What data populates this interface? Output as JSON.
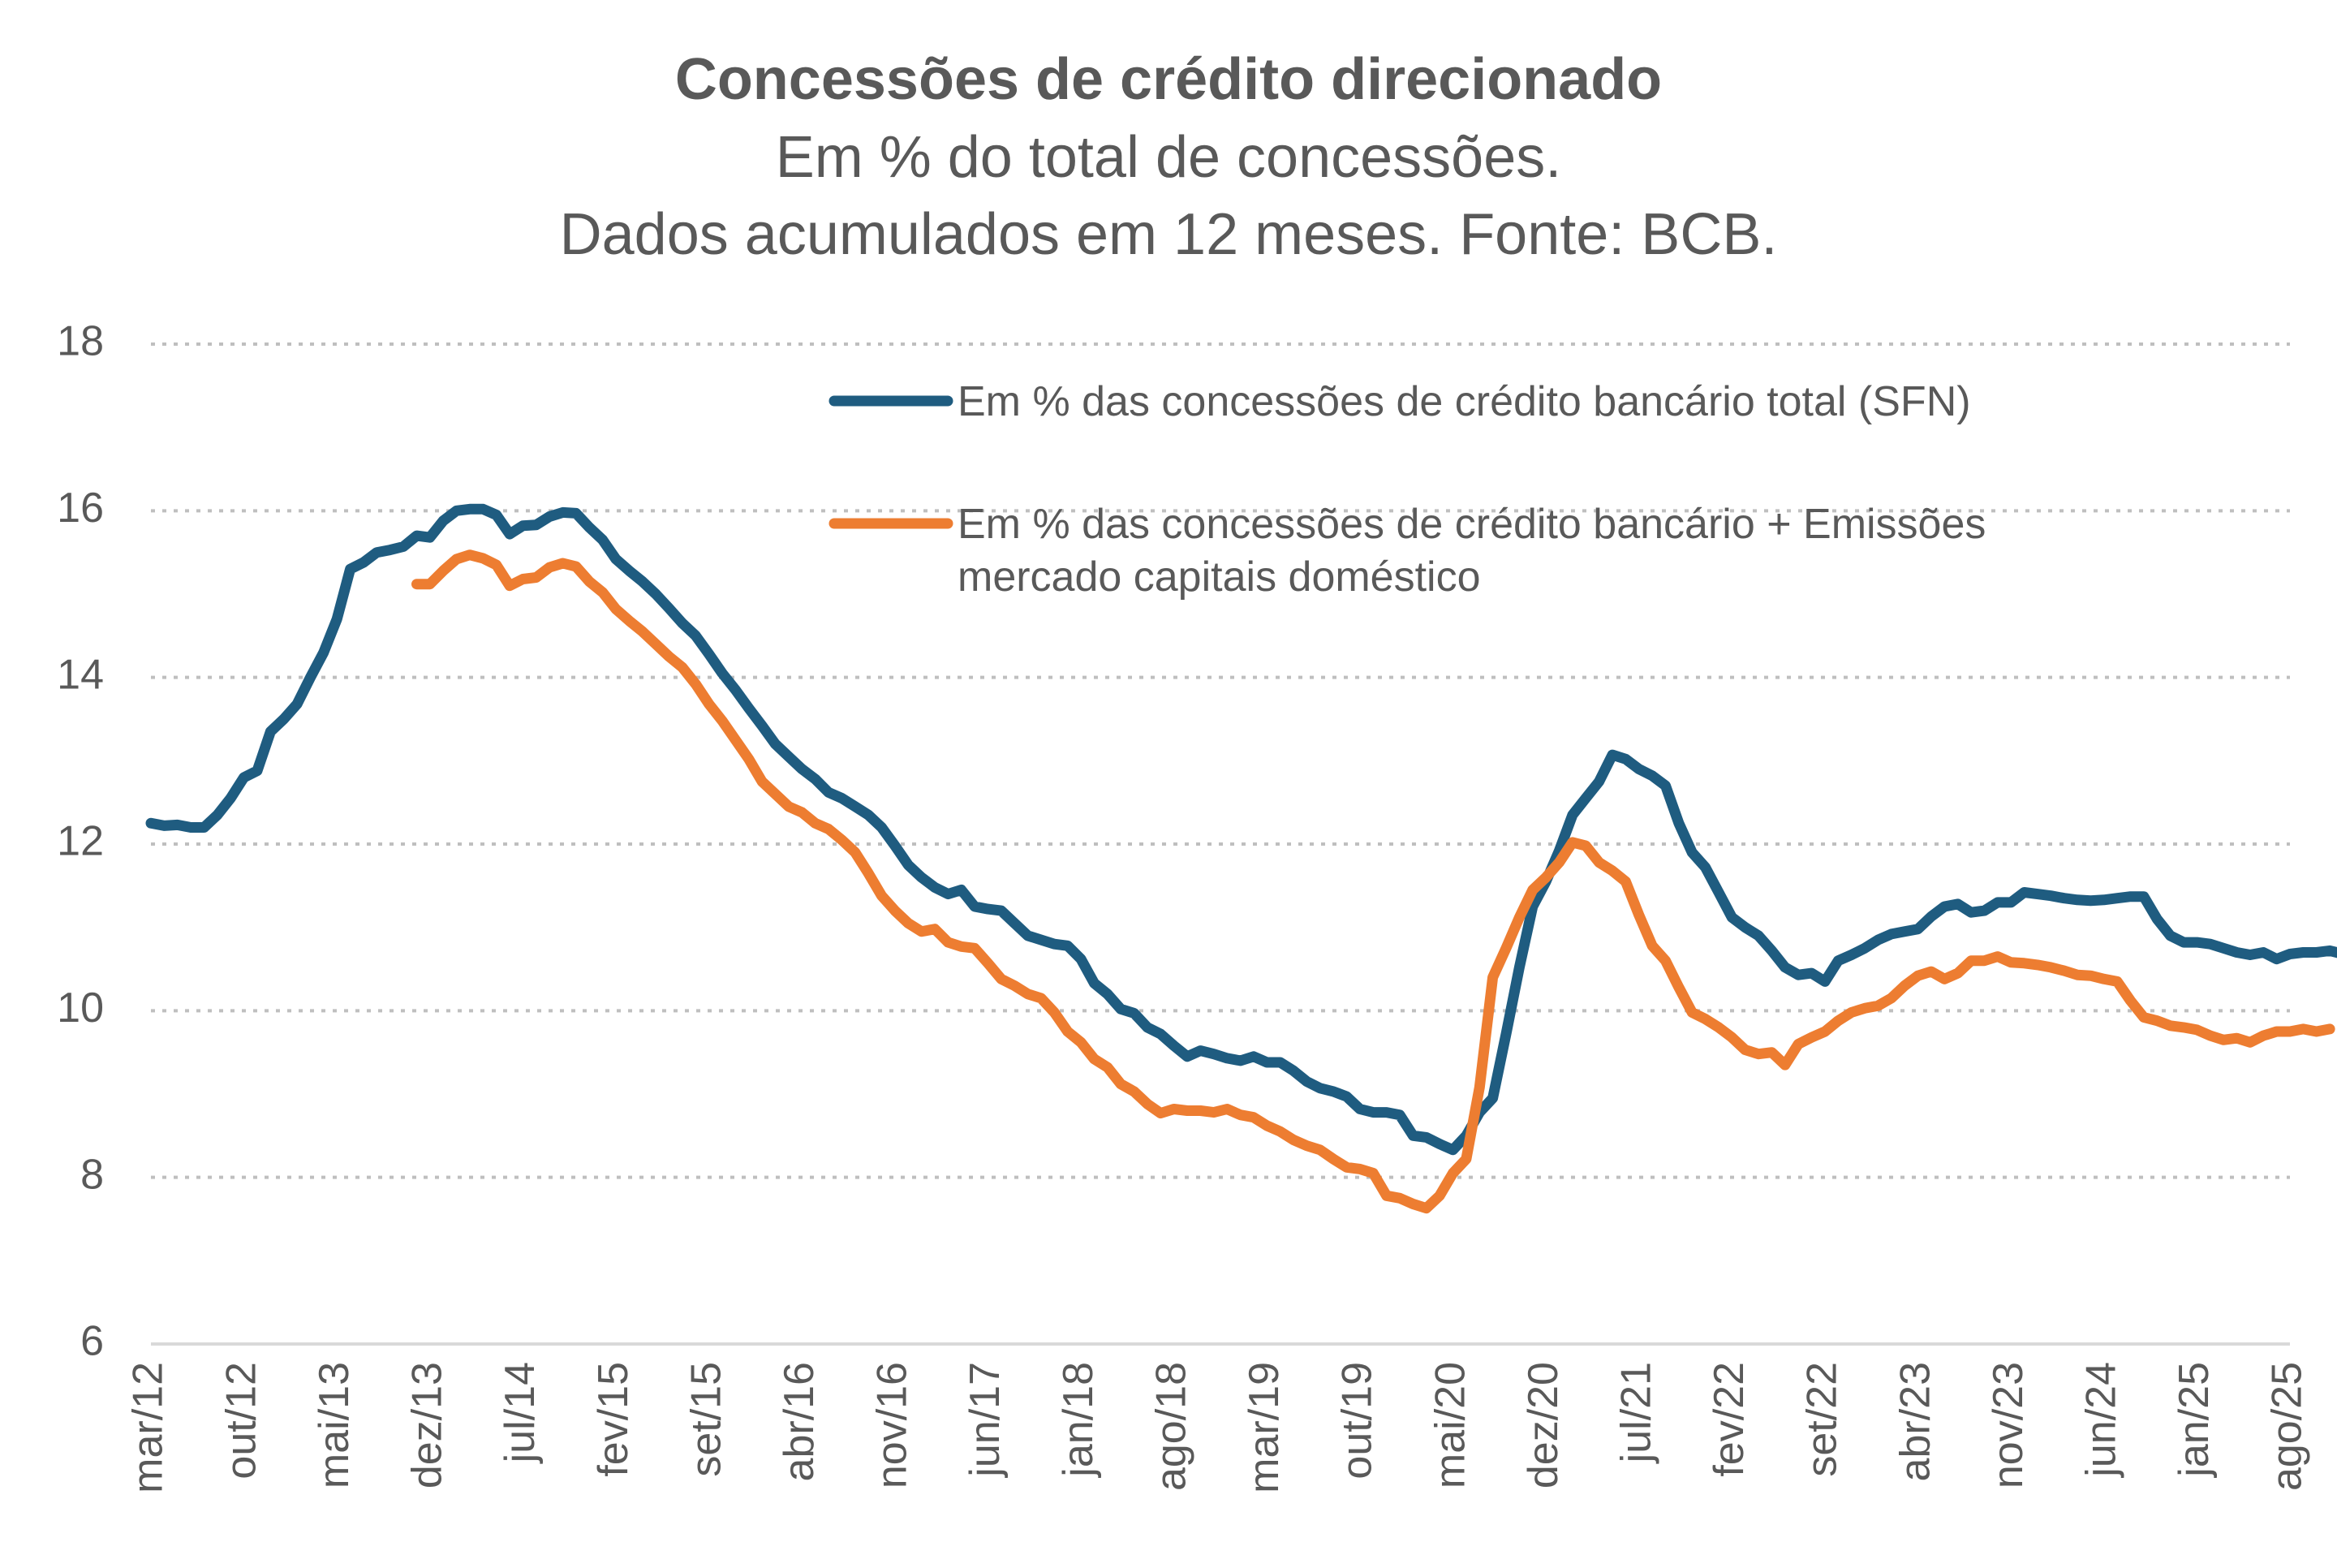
{
  "chart_data": {
    "type": "line",
    "title": "Concessões de crédito direcionado",
    "subtitle_lines": [
      "Em % do total de concessões.",
      "Dados acumulados em 12 meses. Fonte: BCB."
    ],
    "xlabel": "",
    "ylabel": "",
    "ylim": [
      6,
      18
    ],
    "yticks": [
      "6",
      "8",
      "10",
      "12",
      "14",
      "16",
      "18"
    ],
    "grid": "horizontal-dotted",
    "legend_placement": "top-right",
    "x_start": "mar/12",
    "x_end": "ago/25",
    "x_tick_labels": [
      "mar/12",
      "out/12",
      "mai/13",
      "dez/13",
      "jul/14",
      "fev/15",
      "set/15",
      "abr/16",
      "nov/16",
      "jun/17",
      "jan/18",
      "ago/18",
      "mar/19",
      "out/19",
      "mai/20",
      "dez/20",
      "jul/21",
      "fev/22",
      "set/22",
      "abr/23",
      "nov/23",
      "jun/24",
      "jan/25",
      "ago/25"
    ],
    "series": [
      {
        "name": "Em % das concessões de crédito bancário total (SFN)",
        "color": "#1F5C80",
        "start_month_index": 0,
        "values": [
          12.25,
          12.22,
          12.23,
          12.2,
          12.2,
          12.35,
          12.55,
          12.8,
          12.88,
          13.35,
          13.5,
          13.68,
          14.0,
          14.3,
          14.7,
          15.3,
          15.38,
          15.5,
          15.53,
          15.57,
          15.7,
          15.68,
          15.88,
          16.0,
          16.02,
          16.02,
          15.95,
          15.72,
          15.82,
          15.83,
          15.93,
          15.98,
          15.97,
          15.8,
          15.65,
          15.42,
          15.28,
          15.15,
          15.0,
          14.83,
          14.65,
          14.5,
          14.28,
          14.05,
          13.85,
          13.63,
          13.42,
          13.2,
          13.05,
          12.9,
          12.78,
          12.62,
          12.55,
          12.45,
          12.35,
          12.2,
          11.98,
          11.75,
          11.6,
          11.48,
          11.4,
          11.45,
          11.25,
          11.22,
          11.2,
          11.05,
          10.9,
          10.85,
          10.8,
          10.78,
          10.62,
          10.33,
          10.2,
          10.02,
          9.97,
          9.8,
          9.72,
          9.58,
          9.45,
          9.52,
          9.48,
          9.43,
          9.4,
          9.45,
          9.38,
          9.38,
          9.28,
          9.15,
          9.07,
          9.03,
          8.97,
          8.82,
          8.78,
          8.78,
          8.75,
          8.5,
          8.48,
          8.4,
          8.33,
          8.5,
          8.78,
          8.95,
          9.72,
          10.52,
          11.25,
          11.55,
          11.92,
          12.35,
          12.55,
          12.75,
          13.07,
          13.02,
          12.9,
          12.82,
          12.7,
          12.25,
          11.9,
          11.72,
          11.42,
          11.12,
          11.0,
          10.9,
          10.72,
          10.52,
          10.43,
          10.45,
          10.35,
          10.6,
          10.67,
          10.75,
          10.85,
          10.92,
          10.95,
          10.98,
          11.13,
          11.25,
          11.28,
          11.18,
          11.2,
          11.3,
          11.3,
          11.42,
          11.4,
          11.38,
          11.35,
          11.33,
          11.32,
          11.33,
          11.35,
          11.37,
          11.37,
          11.1,
          10.9,
          10.82,
          10.82,
          10.8,
          10.75,
          10.7,
          10.67,
          10.7,
          10.62,
          10.68,
          10.7,
          10.7,
          10.72,
          10.68,
          10.75
        ]
      },
      {
        "name": "Em % das concessões de crédito bancário + Emissões mercado capitais doméstico",
        "color": "#ED7D31",
        "start_month_index": 20,
        "values": [
          15.12,
          15.12,
          15.28,
          15.42,
          15.47,
          15.43,
          15.35,
          15.1,
          15.18,
          15.2,
          15.32,
          15.37,
          15.33,
          15.15,
          15.02,
          14.82,
          14.68,
          14.55,
          14.4,
          14.25,
          14.12,
          13.92,
          13.68,
          13.48,
          13.25,
          13.02,
          12.75,
          12.6,
          12.45,
          12.38,
          12.25,
          12.18,
          12.05,
          11.9,
          11.65,
          11.38,
          11.2,
          11.05,
          10.95,
          10.98,
          10.82,
          10.77,
          10.75,
          10.57,
          10.38,
          10.3,
          10.2,
          10.15,
          9.98,
          9.75,
          9.62,
          9.42,
          9.32,
          9.12,
          9.03,
          8.88,
          8.77,
          8.82,
          8.8,
          8.8,
          8.78,
          8.82,
          8.75,
          8.72,
          8.62,
          8.55,
          8.45,
          8.38,
          8.33,
          8.22,
          8.12,
          8.1,
          8.05,
          7.78,
          7.75,
          7.68,
          7.63,
          7.78,
          8.05,
          8.22,
          9.08,
          10.4,
          10.75,
          11.12,
          11.45,
          11.6,
          11.78,
          12.02,
          11.98,
          11.78,
          11.68,
          11.55,
          11.15,
          10.78,
          10.6,
          10.28,
          9.98,
          9.9,
          9.8,
          9.68,
          9.53,
          9.48,
          9.5,
          9.35,
          9.6,
          9.68,
          9.75,
          9.88,
          9.98,
          10.03,
          10.06,
          10.15,
          10.3,
          10.42,
          10.47,
          10.38,
          10.45,
          10.6,
          10.6,
          10.65,
          10.58,
          10.57,
          10.55,
          10.52,
          10.48,
          10.43,
          10.42,
          10.38,
          10.35,
          10.12,
          9.92,
          9.88,
          9.82,
          9.8,
          9.77,
          9.7,
          9.65,
          9.67,
          9.62,
          9.7,
          9.75,
          9.75,
          9.78,
          9.75,
          9.78
        ]
      }
    ]
  },
  "legend": {
    "entry1_lines": [
      "Em % das concessões de crédito bancário total (SFN)"
    ],
    "entry2_lines": [
      "Em % das concessões de crédito bancário + Emissões",
      "mercado capitais doméstico"
    ]
  }
}
